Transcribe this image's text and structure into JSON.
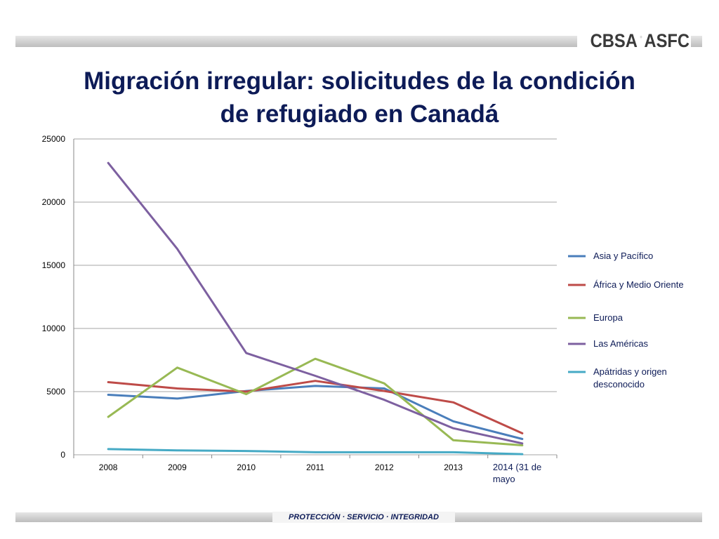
{
  "header": {
    "logo_left": "CBSA",
    "logo_right": "ASFC",
    "title_line1": "Migración irregular: solicitudes de la condición",
    "title_line2": "de refugiado en Canadá"
  },
  "footer": {
    "tagline": "PROTECCIÓN · SERVICIO · INTEGRIDAD"
  },
  "colors": {
    "series": [
      "#4a7ebb",
      "#be4b48",
      "#98b954",
      "#7d60a0",
      "#46aac5"
    ],
    "title": "#0d1b57",
    "grid": "#a6a6a6"
  },
  "chart_data": {
    "type": "line",
    "title": "",
    "xlabel": "",
    "ylabel": "",
    "ylim": [
      0,
      25000
    ],
    "y_ticks": [
      0,
      5000,
      10000,
      15000,
      20000,
      25000
    ],
    "grid": true,
    "legend_position": "right",
    "categories": [
      "2008",
      "2009",
      "2010",
      "2011",
      "2012",
      "2013",
      "2014 (31 de mayo"
    ],
    "series": [
      {
        "name": "Asia y Pacífico",
        "values": [
          4750,
          4450,
          5050,
          5450,
          5250,
          2650,
          1250
        ]
      },
      {
        "name": "África y Medio Oriente",
        "values": [
          5750,
          5250,
          5000,
          5850,
          5050,
          4150,
          1700
        ]
      },
      {
        "name": "Europa",
        "values": [
          3000,
          6900,
          4800,
          7600,
          5650,
          1150,
          750
        ]
      },
      {
        "name": "Las Américas",
        "values": [
          23100,
          16300,
          8050,
          6250,
          4350,
          2100,
          900
        ]
      },
      {
        "name": "Apátridas y origen desconocido",
        "values": [
          450,
          350,
          300,
          200,
          200,
          200,
          50
        ]
      }
    ]
  }
}
